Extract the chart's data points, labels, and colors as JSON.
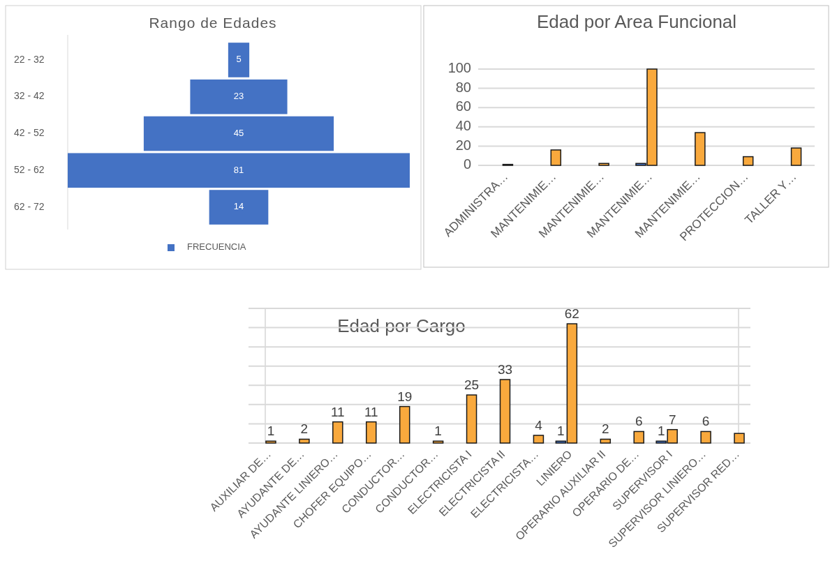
{
  "chart_data": [
    {
      "type": "other",
      "title": "Rango de Edades",
      "categories": [
        "22 - 32",
        "32 - 42",
        "42 - 52",
        "52 - 62",
        "62 - 72"
      ],
      "series": [
        {
          "name": "FRECUENCIA",
          "color": "#4472c4",
          "values": [
            5,
            23,
            45,
            81,
            14
          ]
        }
      ],
      "data_labels": true,
      "legend": "bottom"
    },
    {
      "type": "bar",
      "title": "Edad por Area Funcional",
      "categories": [
        "ADMINISTRA…",
        "MANTENIMIE…",
        "MANTENIMIE…",
        "MANTENIMIE…",
        "MANTENIMIE…",
        "PROTECCION…",
        "TALLER Y…"
      ],
      "series": [
        {
          "color": "#4472c4",
          "values": [
            null,
            null,
            null,
            2,
            null,
            null,
            null
          ]
        },
        {
          "color": "#f9a93d",
          "values": [
            1,
            16,
            2,
            100,
            34,
            9,
            18
          ]
        }
      ],
      "ylim": [
        0,
        100
      ],
      "yticks": [
        0,
        20,
        40,
        60,
        80,
        100
      ],
      "grid": "y"
    },
    {
      "type": "bar",
      "title": "Edad por Cargo",
      "categories": [
        "AUXILIAR DE…",
        "AYUDANTE DE…",
        "AYUDANTE LINIERO…",
        "CHOFER EQUIPO…",
        "CONDUCTOR…",
        "CONDUCTOR…",
        "ELECTRICISTA I",
        "ELECTRICISTA II",
        "ELECTRICISTA…",
        "LINIERO",
        "OPERARIO AUXILIAR II",
        "OPERARIO DE…",
        "SUPERVISOR I",
        "SUPERVISOR LINIERO…",
        "SUPERVISOR RED…"
      ],
      "series": [
        {
          "color": "#4472c4",
          "values": [
            null,
            null,
            null,
            null,
            null,
            null,
            null,
            null,
            null,
            1,
            null,
            null,
            1,
            null,
            null
          ],
          "value_labels": [
            null,
            null,
            null,
            null,
            null,
            null,
            null,
            null,
            null,
            "1",
            null,
            null,
            "1",
            null,
            null
          ]
        },
        {
          "color": "#f9a93d",
          "values": [
            1,
            2,
            11,
            11,
            19,
            1,
            25,
            33,
            4,
            62,
            2,
            6,
            7,
            6,
            5
          ],
          "value_labels": [
            "1",
            "2",
            "11",
            "11",
            "19",
            "1",
            "25",
            "33",
            "4",
            "62",
            "2",
            "6",
            "7",
            "6",
            null
          ]
        }
      ],
      "ylim": [
        0,
        70
      ],
      "yticks": [
        {
          "value": 0,
          "label": null
        },
        {
          "value": 10,
          "label": null
        },
        {
          "value": 20,
          "label": null
        },
        {
          "value": 30,
          "label": null
        },
        {
          "value": 40,
          "label": null
        },
        {
          "value": 50,
          "label": null
        },
        {
          "value": 60,
          "label": null
        },
        {
          "value": 70,
          "label": null
        }
      ],
      "grid": "y",
      "tick_labels": "x"
    }
  ]
}
